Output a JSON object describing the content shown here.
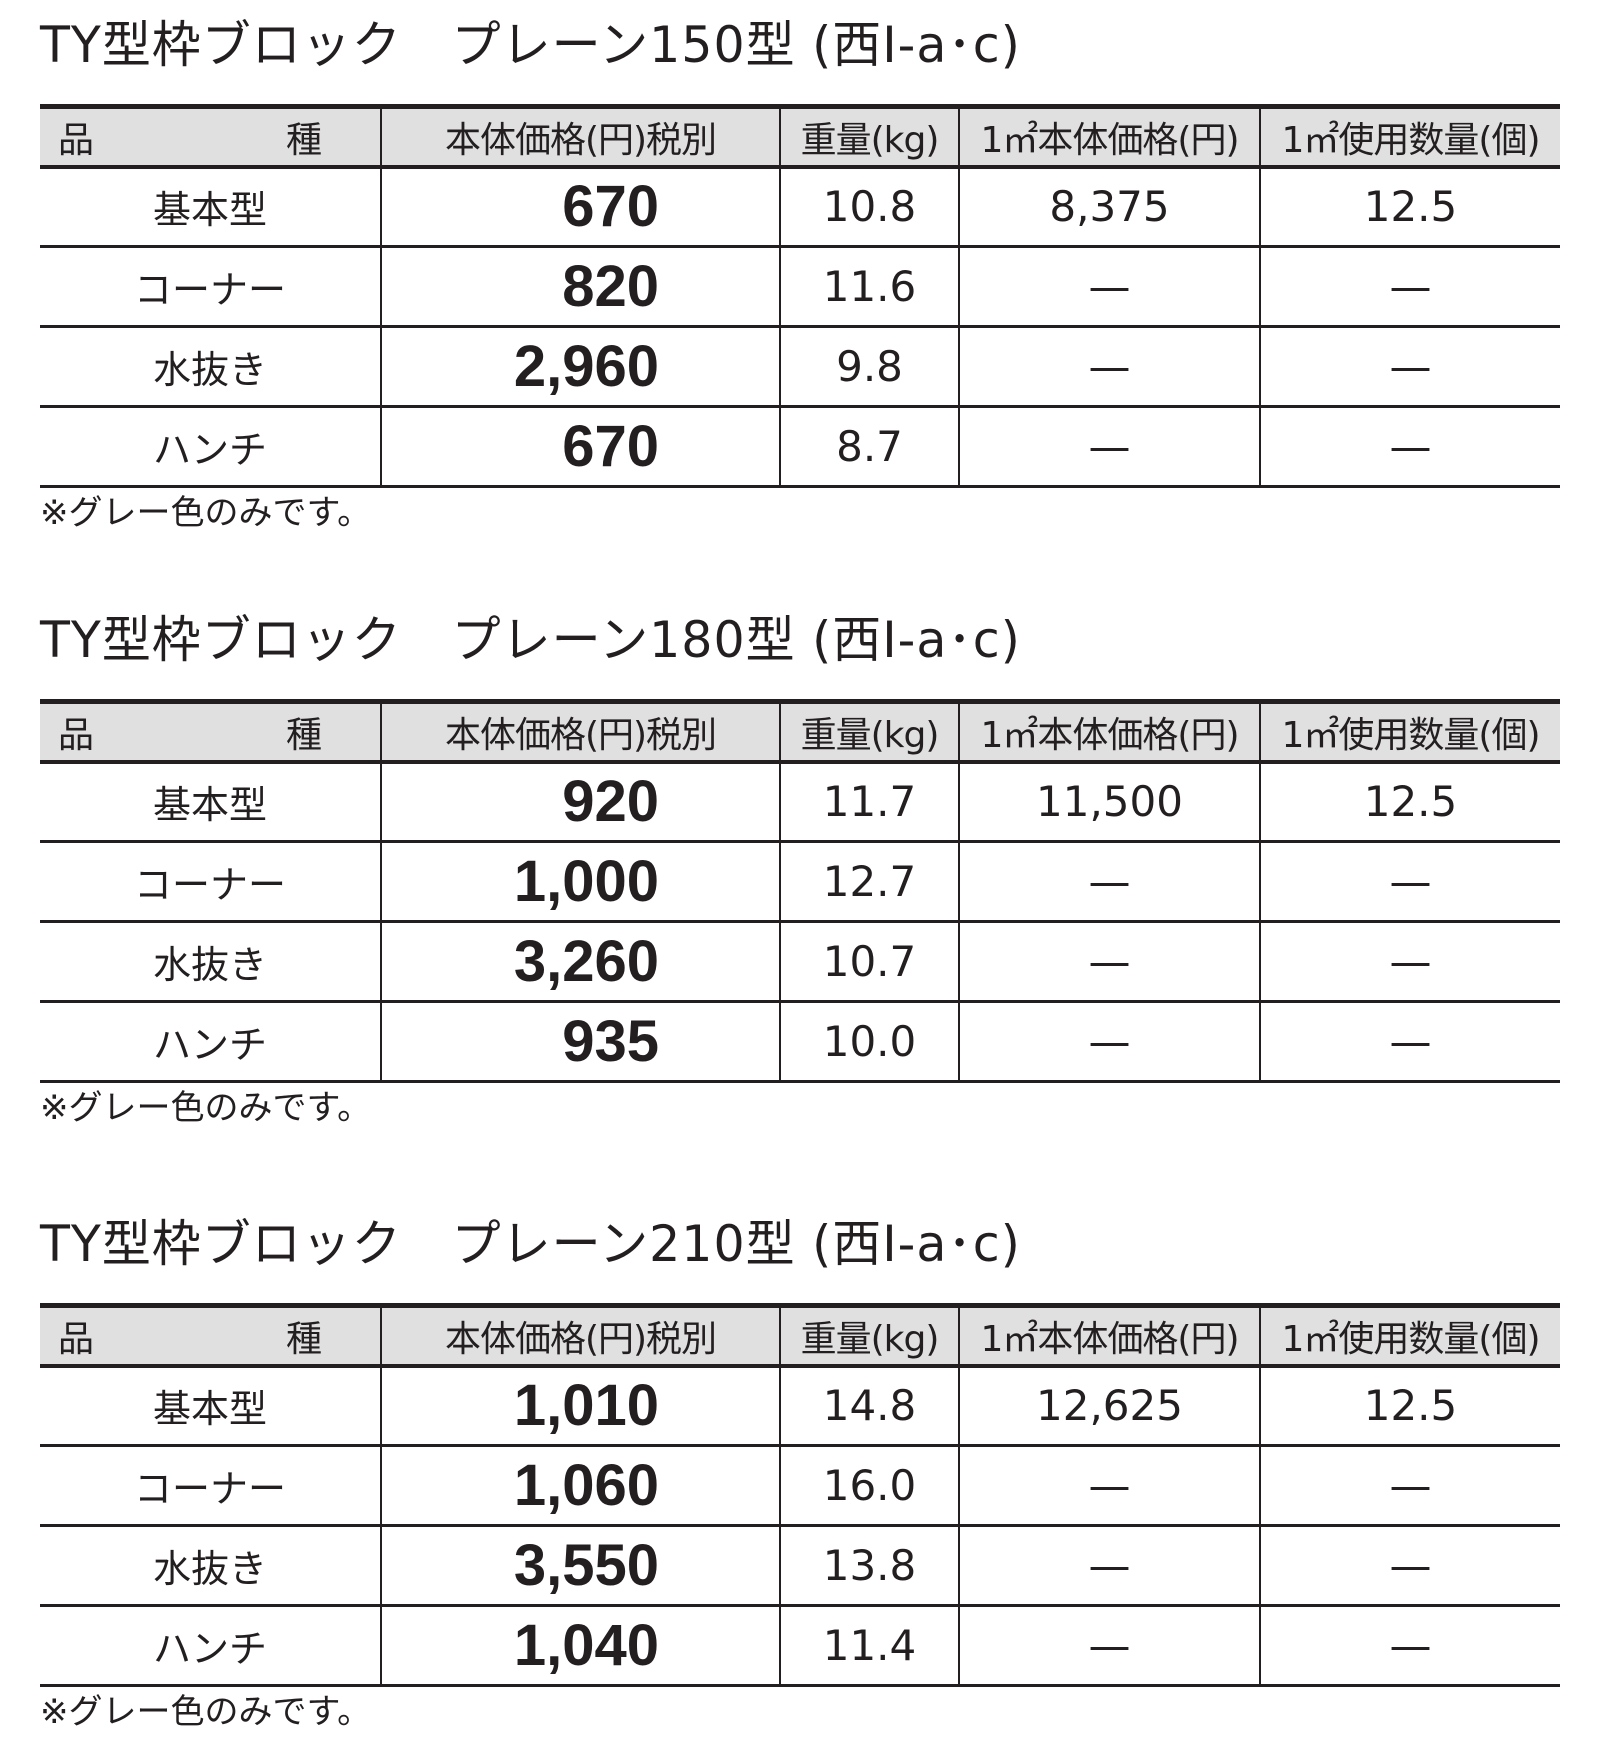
{
  "headers": [
    "品　　種",
    "本体価格(円)税別",
    "重量(kg)",
    "1㎡本体価格(円)",
    "1㎡使用数量(個)"
  ],
  "sections": [
    {
      "title": "TY型枠ブロック　プレーン150型 (西Ⅰ-a･c)",
      "rows": [
        {
          "name": "基本型",
          "price": "670",
          "weight": "10.8",
          "price_per_m2": "8,375",
          "qty_per_m2": "12.5"
        },
        {
          "name": "コーナー",
          "price": "820",
          "weight": "11.6",
          "price_per_m2": "—",
          "qty_per_m2": "—"
        },
        {
          "name": "水抜き",
          "price": "2,960",
          "weight": "9.8",
          "price_per_m2": "—",
          "qty_per_m2": "—"
        },
        {
          "name": "ハンチ",
          "price": "670",
          "weight": "8.7",
          "price_per_m2": "—",
          "qty_per_m2": "—"
        }
      ],
      "note": "※グレー色のみです。"
    },
    {
      "title": "TY型枠ブロック　プレーン180型 (西Ⅰ-a･c)",
      "rows": [
        {
          "name": "基本型",
          "price": "920",
          "weight": "11.7",
          "price_per_m2": "11,500",
          "qty_per_m2": "12.5"
        },
        {
          "name": "コーナー",
          "price": "1,000",
          "weight": "12.7",
          "price_per_m2": "—",
          "qty_per_m2": "—"
        },
        {
          "name": "水抜き",
          "price": "3,260",
          "weight": "10.7",
          "price_per_m2": "—",
          "qty_per_m2": "—"
        },
        {
          "name": "ハンチ",
          "price": "935",
          "weight": "10.0",
          "price_per_m2": "—",
          "qty_per_m2": "—"
        }
      ],
      "note": "※グレー色のみです。"
    },
    {
      "title": "TY型枠ブロック　プレーン210型 (西Ⅰ-a･c)",
      "rows": [
        {
          "name": "基本型",
          "price": "1,010",
          "weight": "14.8",
          "price_per_m2": "12,625",
          "qty_per_m2": "12.5"
        },
        {
          "name": "コーナー",
          "price": "1,060",
          "weight": "16.0",
          "price_per_m2": "—",
          "qty_per_m2": "—"
        },
        {
          "name": "水抜き",
          "price": "3,550",
          "weight": "13.8",
          "price_per_m2": "—",
          "qty_per_m2": "—"
        },
        {
          "name": "ハンチ",
          "price": "1,040",
          "weight": "11.4",
          "price_per_m2": "—",
          "qty_per_m2": "—"
        }
      ],
      "note": "※グレー色のみです。"
    }
  ],
  "colors": {
    "text": "#231f20",
    "header_bg": "#e0e0e0"
  }
}
